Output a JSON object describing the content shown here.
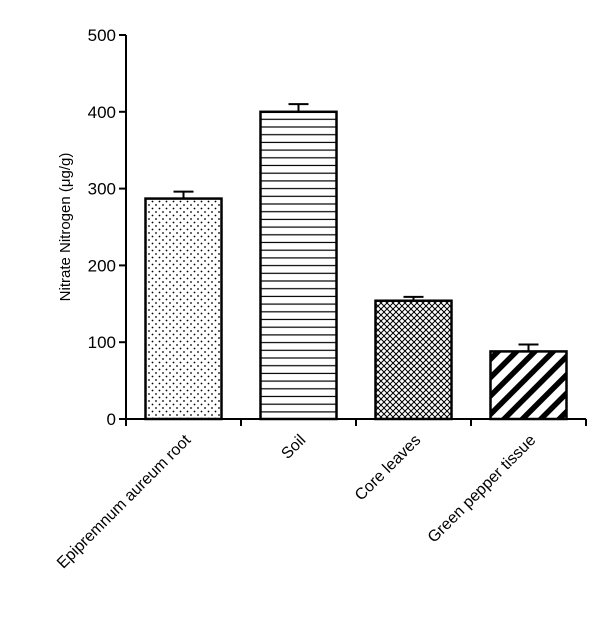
{
  "chart_data": {
    "type": "bar",
    "title": "",
    "xlabel": "",
    "ylabel": "Nitrate Nitrogen (μg/g)",
    "ylim": [
      0,
      500
    ],
    "yticks": [
      0,
      100,
      200,
      300,
      400,
      500
    ],
    "grid": false,
    "legend": "none",
    "categories": [
      "Epipremnum aureum root",
      "Soil",
      "Core leaves",
      "Green pepper tissue"
    ],
    "values": [
      287,
      400,
      154,
      88
    ],
    "errors": [
      9,
      10,
      5,
      9
    ],
    "fill_patterns": [
      "dots",
      "horizontal-lines",
      "crosshatch",
      "diagonal-stripes"
    ],
    "bar_fill_color": "#ffffff",
    "stroke_color": "#000000"
  }
}
